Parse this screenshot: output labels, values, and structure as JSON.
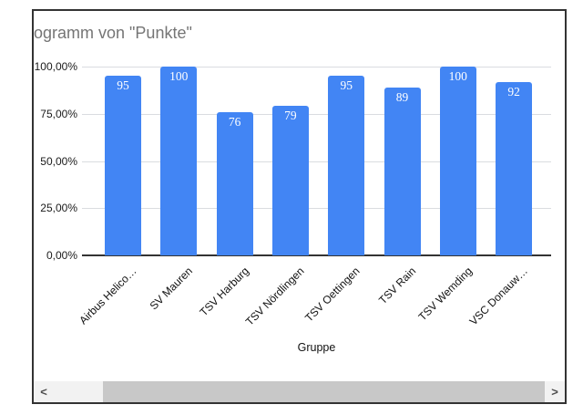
{
  "chart_data": {
    "type": "bar",
    "title": "ogramm von \"Punkte\"",
    "xlabel": "Gruppe",
    "ylabel": "",
    "categories": [
      "Airbus Helico…",
      "SV Mauren",
      "TSV Harburg",
      "TSV Nördlingen",
      "TSV Oettingen",
      "TSV Rain",
      "TSV Wemding",
      "VSC Donauw…"
    ],
    "values": [
      95,
      100,
      76,
      79,
      95,
      89,
      100,
      92
    ],
    "data_labels": [
      "95",
      "100",
      "76",
      "79",
      "95",
      "89",
      "100",
      "92"
    ],
    "ylim": [
      0,
      100
    ],
    "grid": true,
    "legend": "none",
    "y_ticks": [
      {
        "label": "100,00%",
        "value": 100
      },
      {
        "label": "75,00%",
        "value": 75
      },
      {
        "label": "50,00%",
        "value": 50
      },
      {
        "label": "25,00%",
        "value": 25
      },
      {
        "label": "0,00%",
        "value": 0
      }
    ],
    "colors": {
      "bar": "#4285f4",
      "title": "#757575",
      "grid": "#dadce0",
      "baseline": "#333333",
      "data_label": "#ffffff"
    }
  },
  "scrollbar": {
    "left_arrow": "<",
    "right_arrow": ">"
  }
}
